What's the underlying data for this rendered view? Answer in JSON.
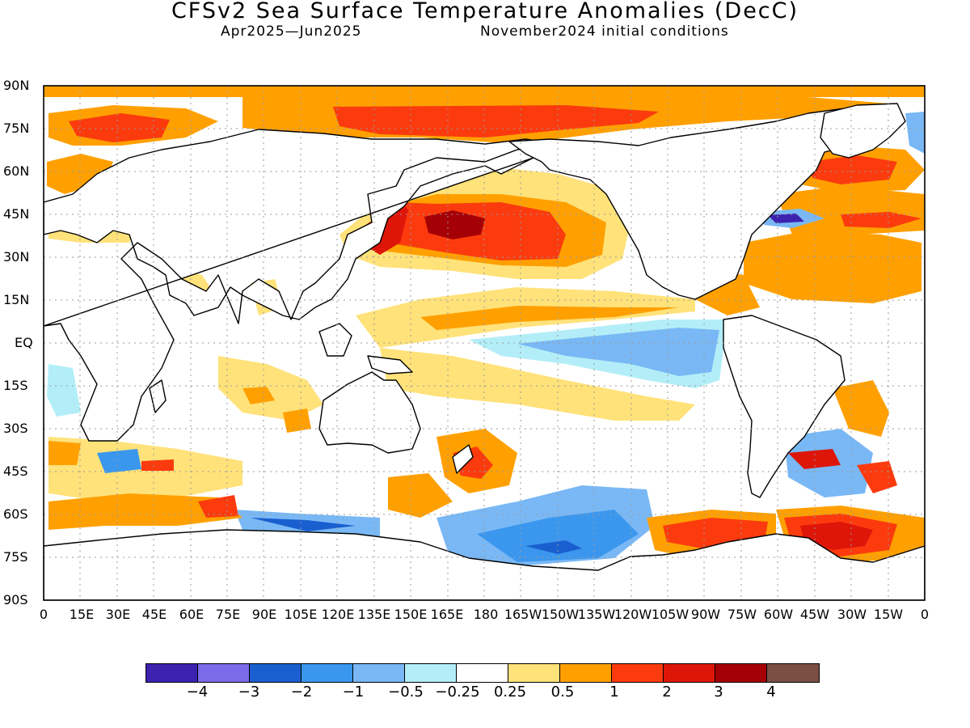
{
  "header": {
    "title": "CFSv2 Sea Surface Temperature Anomalies (DecC)",
    "period": "Apr2025—Jun2025",
    "initial": "November2024 initial conditions"
  },
  "lat_labels": [
    "90N",
    "75N",
    "60N",
    "45N",
    "30N",
    "15N",
    "EQ",
    "15S",
    "30S",
    "45S",
    "60S",
    "75S",
    "90S"
  ],
  "lon_labels": [
    "0",
    "15E",
    "30E",
    "45E",
    "60E",
    "75E",
    "90E",
    "105E",
    "120E",
    "135E",
    "150E",
    "165E",
    "180",
    "165W",
    "150W",
    "135W",
    "120W",
    "105W",
    "90W",
    "75W",
    "60W",
    "45W",
    "30W",
    "15W",
    "0"
  ],
  "colorbar": {
    "colors": [
      "#3d22b0",
      "#7b6be8",
      "#1a5fcf",
      "#3b97ee",
      "#79b8f5",
      "#b3eef8",
      "#ffffff",
      "#ffe27a",
      "#ffa000",
      "#fb3b0e",
      "#dd1609",
      "#a50005",
      "#7b4f44"
    ],
    "labels": [
      "−4",
      "−3",
      "−2",
      "−1",
      "−0.5",
      "−0.25",
      "0.25",
      "0.5",
      "1",
      "2",
      "3",
      "4"
    ]
  },
  "map_data": {
    "type": "filled-contour-map",
    "projection": "equirectangular",
    "lon_range": [
      0,
      360
    ],
    "lat_range": [
      -90,
      90
    ],
    "units": "DecC",
    "anomaly_regions": [
      {
        "label": "North Pacific warm anomaly",
        "lon_center": 200,
        "lat_center": 41,
        "lon_span": 55,
        "lat_span": 17,
        "level_range": [
          1,
          3
        ]
      },
      {
        "label": "Japan coast warm anomaly",
        "lon_center": 142,
        "lat_center": 40,
        "lon_span": 12,
        "lat_span": 14,
        "level_range": [
          1,
          3
        ]
      },
      {
        "label": "Arctic warm anomaly",
        "lon_center": 195,
        "lat_center": 78,
        "lon_span": 100,
        "lat_span": 8,
        "level_range": [
          1,
          2
        ]
      },
      {
        "label": "Barents/Kara warm anomaly",
        "lon_center": 40,
        "lat_center": 75,
        "lon_span": 40,
        "lat_span": 8,
        "level_range": [
          1,
          2
        ]
      },
      {
        "label": "North Atlantic warm anomaly",
        "lon_center": 330,
        "lat_center": 45,
        "lon_span": 50,
        "lat_span": 25,
        "level_range": [
          0.5,
          2
        ]
      },
      {
        "label": "Equatorial Pacific cool anomaly",
        "lon_center": 235,
        "lat_center": -3,
        "lon_span": 80,
        "lat_span": 10,
        "level_range": [
          -1,
          -0.25
        ]
      },
      {
        "label": "South Pacific cool anomaly",
        "lon_center": 210,
        "lat_center": -67,
        "lon_span": 60,
        "lat_span": 12,
        "level_range": [
          -2,
          -0.5
        ]
      },
      {
        "label": "Southeast Pacific warm anomaly",
        "lon_center": 270,
        "lat_center": -67,
        "lon_span": 50,
        "lat_span": 10,
        "level_range": [
          1,
          2
        ]
      },
      {
        "label": "Weddell Sea warm anomaly",
        "lon_center": 320,
        "lat_center": -67,
        "lon_span": 40,
        "lat_span": 12,
        "level_range": [
          1,
          3
        ]
      }
    ]
  }
}
